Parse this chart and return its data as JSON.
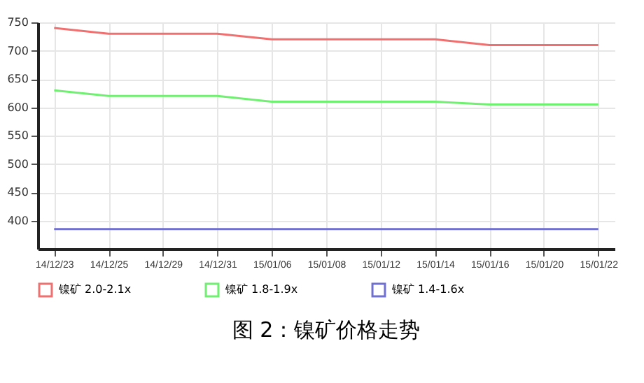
{
  "chart_data": {
    "type": "line",
    "title": "图 2：镍矿价格走势",
    "categories": [
      "14/12/23",
      "14/12/25",
      "14/12/29",
      "14/12/31",
      "15/01/06",
      "15/01/08",
      "15/01/12",
      "15/01/14",
      "15/01/16",
      "15/01/20",
      "15/01/22"
    ],
    "ylim": [
      350,
      750
    ],
    "yticks": [
      400,
      450,
      500,
      550,
      600,
      650,
      700,
      750
    ],
    "series": [
      {
        "name": "镍矿 2.0-2.1x",
        "color": "#f07070",
        "values": [
          740,
          730,
          730,
          730,
          720,
          720,
          720,
          720,
          710,
          710,
          710
        ]
      },
      {
        "name": "镍矿 1.8-1.9x",
        "color": "#70f070",
        "values": [
          630,
          620,
          620,
          620,
          610,
          610,
          610,
          610,
          605,
          605,
          605
        ]
      },
      {
        "name": "镍矿 1.4-1.6x",
        "color": "#7070d0",
        "values": [
          385,
          385,
          385,
          385,
          385,
          385,
          385,
          385,
          385,
          385,
          385
        ]
      }
    ],
    "grid": true,
    "legend": "bottom",
    "marker": "none",
    "line_style": "solid"
  }
}
